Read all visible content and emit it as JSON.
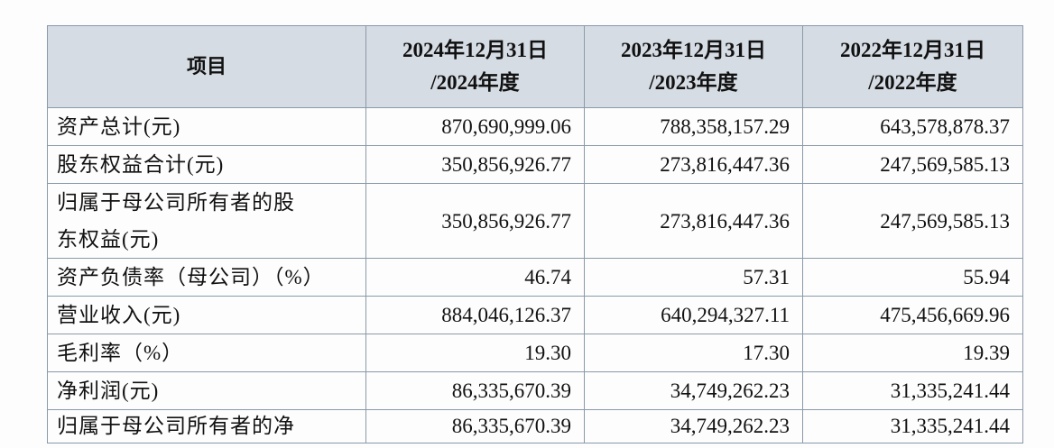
{
  "table": {
    "header": {
      "item": "项目",
      "col1_line1": "2024年12月31日",
      "col1_line2": "/2024年度",
      "col2_line1": "2023年12月31日",
      "col2_line2": "/2023年度",
      "col3_line1": "2022年12月31日",
      "col3_line2": "/2022年度"
    },
    "rows": [
      {
        "label": "资产总计(元)",
        "v2024": "870,690,999.06",
        "v2023": "788,358,157.29",
        "v2022": "643,578,878.37"
      },
      {
        "label": "股东权益合计(元)",
        "v2024": "350,856,926.77",
        "v2023": "273,816,447.36",
        "v2022": "247,569,585.13"
      },
      {
        "label_line1": "归属于母公司所有者的股",
        "label_line2": "东权益(元)",
        "v2024": "350,856,926.77",
        "v2023": "273,816,447.36",
        "v2022": "247,569,585.13"
      },
      {
        "label": "资产负债率（母公司）（%）",
        "v2024": "46.74",
        "v2023": "57.31",
        "v2022": "55.94"
      },
      {
        "label": "营业收入(元)",
        "v2024": "884,046,126.37",
        "v2023": "640,294,327.11",
        "v2022": "475,456,669.96"
      },
      {
        "label": "毛利率（%）",
        "v2024": "19.30",
        "v2023": "17.30",
        "v2022": "19.39"
      },
      {
        "label": "净利润(元)",
        "v2024": "86,335,670.39",
        "v2023": "34,749,262.23",
        "v2022": "31,335,241.44"
      },
      {
        "label": "归属于母公司所有者的净",
        "v2024": "86,335,670.39",
        "v2023": "34,749,262.23",
        "v2022": "31,335,241.44"
      }
    ]
  }
}
